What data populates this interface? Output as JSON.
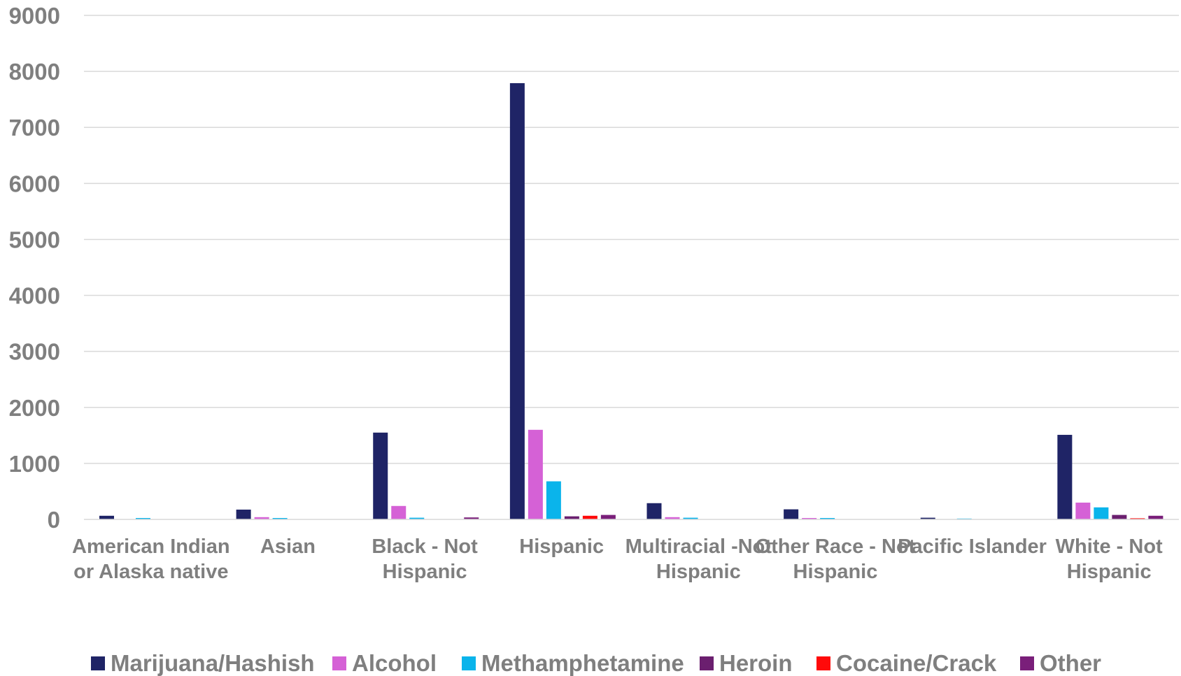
{
  "chart_data": {
    "type": "bar",
    "ylim": [
      0,
      9000
    ],
    "yticks": [
      0,
      1000,
      2000,
      3000,
      4000,
      5000,
      6000,
      7000,
      8000,
      9000
    ],
    "grid": true,
    "legend_position": "bottom",
    "categories": [
      [
        "American Indian",
        "or Alaska native"
      ],
      [
        "Asian"
      ],
      [
        "Black - Not",
        "Hispanic"
      ],
      [
        "Hispanic"
      ],
      [
        "Multiracial -Not",
        "Hispanic"
      ],
      [
        "Other Race - Not",
        "Hispanic"
      ],
      [
        "Pacific Islander"
      ],
      [
        "White - Not",
        "Hispanic"
      ]
    ],
    "series": [
      {
        "name": "Marijuana/Hashish",
        "color": "#1f2466",
        "values": [
          65,
          175,
          1550,
          7790,
          290,
          180,
          30,
          1510
        ]
      },
      {
        "name": "Alcohol",
        "color": "#d561d6",
        "values": [
          5,
          40,
          240,
          1600,
          40,
          25,
          5,
          300
        ]
      },
      {
        "name": "Methamphetamine",
        "color": "#0ab4eb",
        "values": [
          25,
          25,
          30,
          680,
          30,
          25,
          15,
          215
        ]
      },
      {
        "name": "Heroin",
        "color": "#6b1f6f",
        "values": [
          0,
          3,
          3,
          55,
          3,
          3,
          0,
          80
        ]
      },
      {
        "name": "Cocaine/Crack",
        "color": "#ff0a0a",
        "values": [
          0,
          3,
          3,
          65,
          3,
          3,
          0,
          20
        ]
      },
      {
        "name": "Other",
        "color": "#7a1f7a",
        "values": [
          0,
          5,
          35,
          80,
          5,
          3,
          0,
          65
        ]
      }
    ]
  }
}
